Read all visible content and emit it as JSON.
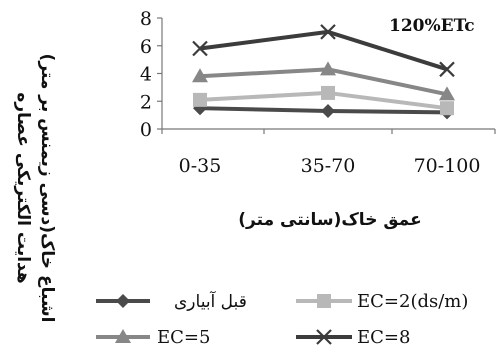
{
  "chart_data": {
    "type": "line",
    "annotation": "120%ETc",
    "categories": [
      "0-35",
      "35-70",
      "70-100"
    ],
    "ylim": [
      0,
      8
    ],
    "yticks": [
      0,
      2,
      4,
      6,
      8
    ],
    "ylabel_line1": "هدایت الکتریکی عصاره",
    "ylabel_line2": "اشباع خاک(دسی زیمنس بر متر)",
    "xlabel": "عمق خاک(سانتی متر)",
    "series": [
      {
        "name": "قبل آبیاری",
        "values": [
          1.5,
          1.3,
          1.2
        ],
        "color": "#4a4a4a",
        "marker": "diamond"
      },
      {
        "name": "EC=2(ds/m)",
        "values": [
          2.1,
          2.6,
          1.5
        ],
        "color": "#b8b8b8",
        "marker": "square"
      },
      {
        "name": "EC=5",
        "values": [
          3.8,
          4.3,
          2.5
        ],
        "color": "#878787",
        "marker": "triangle"
      },
      {
        "name": "EC=8",
        "values": [
          5.8,
          7.0,
          4.3
        ],
        "color": "#3c3c3c",
        "marker": "x"
      }
    ]
  }
}
